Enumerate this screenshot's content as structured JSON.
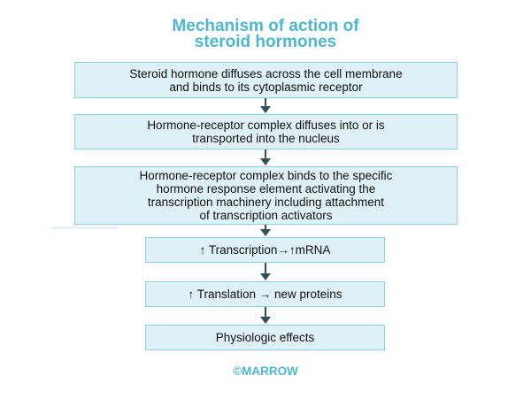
{
  "title": {
    "line1": "Mechanism of action of",
    "line2": "steroid hormones"
  },
  "steps": [
    {
      "lines": [
        "Steroid hormone diffuses across the cell membrane",
        "and binds to its cytoplasmic receptor"
      ]
    },
    {
      "lines": [
        "Hormone-receptor complex diffuses into or is",
        "transported into the nucleus"
      ]
    },
    {
      "lines": [
        "Hormone-receptor complex binds to the specific",
        "hormone response element activating the",
        "transcription machinery including attachment",
        "of transcription activators"
      ]
    },
    {
      "lines": [
        "↑ Transcription→↑mRNA"
      ]
    },
    {
      "lines": [
        "↑ Translation → new proteins"
      ]
    },
    {
      "lines": [
        "Physiologic effects"
      ]
    }
  ],
  "watermark": "MARROW",
  "footer": "©MARROW",
  "colors": {
    "title": "#4cb8cf",
    "box_fill": "#dff1f6",
    "box_border": "#8ccfdf",
    "arrow": "#2f4f5c"
  }
}
